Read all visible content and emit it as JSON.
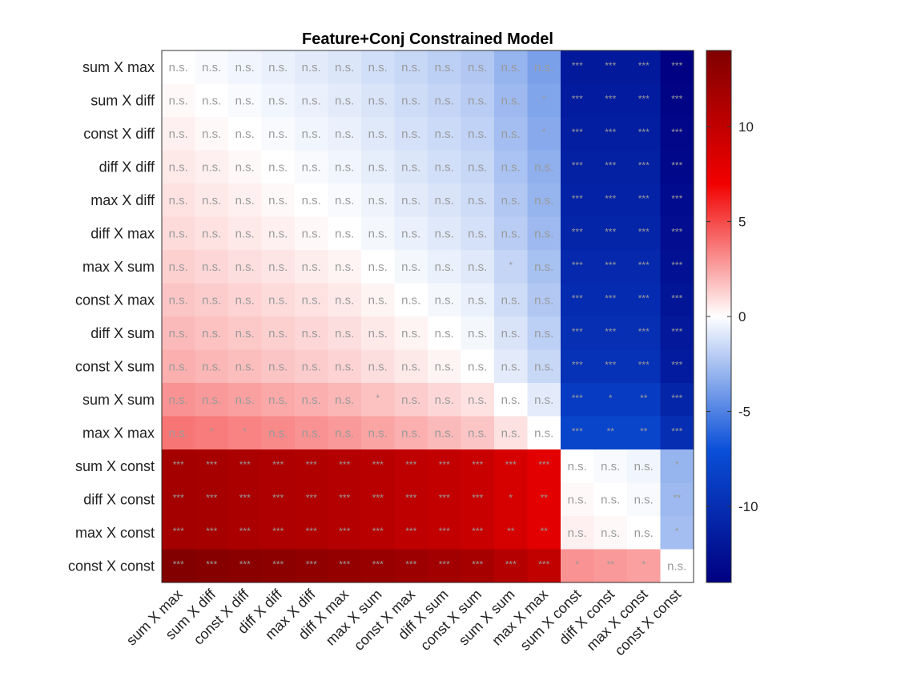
{
  "chart_data": {
    "type": "heatmap",
    "title": "Feature+Conj Constrained Model",
    "rows": [
      "sum X max",
      "sum X diff",
      "const X diff",
      "diff X diff",
      "max X diff",
      "diff X max",
      "max X sum",
      "const X max",
      "diff X sum",
      "const X sum",
      "sum X sum",
      "max X max",
      "sum X const",
      "diff X const",
      "max X const",
      "const X const"
    ],
    "cols": [
      "sum X max",
      "sum X diff",
      "const X diff",
      "diff X diff",
      "max X diff",
      "diff X max",
      "max X sum",
      "const X max",
      "diff X sum",
      "const X sum",
      "sum X sum",
      "max X max",
      "sum X const",
      "diff X const",
      "max X const",
      "const X const"
    ],
    "values": [
      [
        0,
        -0.2,
        -0.4,
        -0.6,
        -0.8,
        -1.0,
        -1.3,
        -1.6,
        -1.9,
        -2.2,
        -3.0,
        -3.8,
        -11.8,
        -11.8,
        -11.8,
        -13.8
      ],
      [
        0.2,
        0,
        -0.2,
        -0.4,
        -0.6,
        -0.8,
        -1.1,
        -1.4,
        -1.7,
        -2.0,
        -2.8,
        -3.6,
        -11.6,
        -11.6,
        -11.6,
        -13.6
      ],
      [
        0.4,
        0.2,
        0,
        -0.2,
        -0.4,
        -0.6,
        -0.9,
        -1.2,
        -1.5,
        -1.8,
        -2.6,
        -3.4,
        -11.4,
        -11.4,
        -11.4,
        -13.4
      ],
      [
        0.6,
        0.4,
        0.2,
        0,
        -0.2,
        -0.4,
        -0.7,
        -1.0,
        -1.3,
        -1.6,
        -2.4,
        -3.2,
        -11.2,
        -11.2,
        -11.2,
        -13.2
      ],
      [
        0.8,
        0.6,
        0.4,
        0.2,
        0,
        -0.2,
        -0.5,
        -0.8,
        -1.1,
        -1.4,
        -2.2,
        -3.0,
        -11.0,
        -11.0,
        -11.0,
        -13.0
      ],
      [
        1.0,
        0.8,
        0.6,
        0.4,
        0.2,
        0,
        -0.3,
        -0.6,
        -0.9,
        -1.2,
        -2.0,
        -2.8,
        -10.8,
        -10.8,
        -10.8,
        -12.8
      ],
      [
        1.3,
        1.1,
        0.9,
        0.7,
        0.5,
        0.3,
        0,
        -0.3,
        -0.6,
        -0.9,
        -1.7,
        -2.5,
        -10.5,
        -10.5,
        -10.5,
        -12.5
      ],
      [
        1.6,
        1.4,
        1.2,
        1.0,
        0.8,
        0.6,
        0.3,
        0,
        -0.3,
        -0.6,
        -1.4,
        -2.2,
        -10.2,
        -10.2,
        -10.2,
        -12.2
      ],
      [
        1.9,
        1.7,
        1.5,
        1.3,
        1.1,
        0.9,
        0.6,
        0.3,
        0,
        -0.3,
        -1.1,
        -1.9,
        -9.9,
        -9.9,
        -9.9,
        -11.9
      ],
      [
        2.2,
        2.0,
        1.8,
        1.6,
        1.4,
        1.2,
        0.9,
        0.6,
        0.3,
        0,
        -0.8,
        -1.6,
        -9.6,
        -9.6,
        -9.6,
        -11.6
      ],
      [
        3.0,
        2.8,
        2.6,
        2.4,
        2.2,
        2.0,
        1.7,
        1.4,
        1.1,
        0.8,
        0,
        -0.8,
        -8.8,
        -8.8,
        -8.8,
        -10.8
      ],
      [
        3.8,
        3.6,
        3.4,
        3.2,
        3.0,
        2.8,
        2.5,
        2.2,
        1.9,
        1.6,
        0.8,
        0,
        -8.0,
        -8.0,
        -8.0,
        -10.0
      ],
      [
        11.8,
        11.6,
        11.4,
        11.2,
        11.0,
        10.8,
        10.5,
        10.2,
        9.9,
        9.6,
        8.8,
        8.0,
        0,
        -0.2,
        -0.4,
        -3.0
      ],
      [
        11.8,
        11.6,
        11.4,
        11.2,
        11.0,
        10.8,
        10.5,
        10.2,
        9.9,
        9.6,
        8.8,
        8.0,
        0.2,
        0,
        -0.2,
        -2.8
      ],
      [
        11.8,
        11.6,
        11.4,
        11.2,
        11.0,
        10.8,
        10.5,
        10.2,
        9.9,
        9.6,
        8.8,
        8.0,
        0.4,
        0.2,
        0,
        -2.6
      ],
      [
        13.8,
        13.6,
        13.4,
        13.2,
        13.0,
        12.8,
        12.5,
        12.2,
        11.9,
        11.6,
        10.8,
        10.0,
        3.0,
        2.8,
        2.6,
        0
      ]
    ],
    "significance": [
      [
        "n.s.",
        "n.s.",
        "n.s.",
        "n.s.",
        "n.s.",
        "n.s.",
        "n.s.",
        "n.s.",
        "n.s.",
        "n.s.",
        "n.s.",
        "n.s.",
        "***",
        "***",
        "***",
        "***"
      ],
      [
        "n.s.",
        "n.s.",
        "n.s.",
        "n.s.",
        "n.s.",
        "n.s.",
        "n.s.",
        "n.s.",
        "n.s.",
        "n.s.",
        "n.s.",
        "*",
        "***",
        "***",
        "***",
        "***"
      ],
      [
        "n.s.",
        "n.s.",
        "n.s.",
        "n.s.",
        "n.s.",
        "n.s.",
        "n.s.",
        "n.s.",
        "n.s.",
        "n.s.",
        "n.s.",
        "*",
        "***",
        "***",
        "***",
        "***"
      ],
      [
        "n.s.",
        "n.s.",
        "n.s.",
        "n.s.",
        "n.s.",
        "n.s.",
        "n.s.",
        "n.s.",
        "n.s.",
        "n.s.",
        "n.s.",
        "n.s.",
        "***",
        "***",
        "***",
        "***"
      ],
      [
        "n.s.",
        "n.s.",
        "n.s.",
        "n.s.",
        "n.s.",
        "n.s.",
        "n.s.",
        "n.s.",
        "n.s.",
        "n.s.",
        "n.s.",
        "n.s.",
        "***",
        "***",
        "***",
        "***"
      ],
      [
        "n.s.",
        "n.s.",
        "n.s.",
        "n.s.",
        "n.s.",
        "n.s.",
        "n.s.",
        "n.s.",
        "n.s.",
        "n.s.",
        "n.s.",
        "n.s.",
        "***",
        "***",
        "***",
        "***"
      ],
      [
        "n.s.",
        "n.s.",
        "n.s.",
        "n.s.",
        "n.s.",
        "n.s.",
        "n.s.",
        "n.s.",
        "n.s.",
        "n.s.",
        "*",
        "n.s.",
        "***",
        "***",
        "***",
        "***"
      ],
      [
        "n.s.",
        "n.s.",
        "n.s.",
        "n.s.",
        "n.s.",
        "n.s.",
        "n.s.",
        "n.s.",
        "n.s.",
        "n.s.",
        "n.s.",
        "n.s.",
        "***",
        "***",
        "***",
        "***"
      ],
      [
        "n.s.",
        "n.s.",
        "n.s.",
        "n.s.",
        "n.s.",
        "n.s.",
        "n.s.",
        "n.s.",
        "n.s.",
        "n.s.",
        "n.s.",
        "n.s.",
        "***",
        "***",
        "***",
        "***"
      ],
      [
        "n.s.",
        "n.s.",
        "n.s.",
        "n.s.",
        "n.s.",
        "n.s.",
        "n.s.",
        "n.s.",
        "n.s.",
        "n.s.",
        "n.s.",
        "n.s.",
        "***",
        "***",
        "***",
        "***"
      ],
      [
        "n.s.",
        "n.s.",
        "n.s.",
        "n.s.",
        "n.s.",
        "n.s.",
        "*",
        "n.s.",
        "n.s.",
        "n.s.",
        "n.s.",
        "n.s.",
        "***",
        "*",
        "**",
        "***"
      ],
      [
        "n.s.",
        "*",
        "*",
        "n.s.",
        "n.s.",
        "n.s.",
        "n.s.",
        "n.s.",
        "n.s.",
        "n.s.",
        "n.s.",
        "n.s.",
        "***",
        "**",
        "**",
        "***"
      ],
      [
        "***",
        "***",
        "***",
        "***",
        "***",
        "***",
        "***",
        "***",
        "***",
        "***",
        "***",
        "***",
        "n.s.",
        "n.s.",
        "n.s.",
        "*"
      ],
      [
        "***",
        "***",
        "***",
        "***",
        "***",
        "***",
        "***",
        "***",
        "***",
        "***",
        "*",
        "**",
        "n.s.",
        "n.s.",
        "n.s.",
        "**"
      ],
      [
        "***",
        "***",
        "***",
        "***",
        "***",
        "***",
        "***",
        "***",
        "***",
        "***",
        "**",
        "**",
        "n.s.",
        "n.s.",
        "n.s.",
        "*"
      ],
      [
        "***",
        "***",
        "***",
        "***",
        "***",
        "***",
        "***",
        "***",
        "***",
        "***",
        "***",
        "***",
        "*",
        "**",
        "*",
        "n.s."
      ]
    ],
    "colorbar": {
      "range": [
        -14,
        14
      ],
      "ticks": [
        10,
        5,
        0,
        -5,
        -10
      ],
      "colormap": [
        "#000080",
        "#0a50d8",
        "#ffffff",
        "#f20000",
        "#800000"
      ]
    }
  }
}
